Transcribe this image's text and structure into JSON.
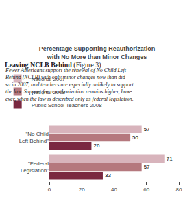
{
  "chart_data": {
    "type": "bar",
    "orientation": "horizontal",
    "title": "Percentage Supporting Reauthorization\nwith No More than Minor Changes",
    "annotations": [
      "Leaving NCLB Behind",
      "(Figure 3)",
      "Fewer Americans support the renewal of No Child Left\nBehind (NCLB) with only minor changes now than did\nso in 2007, and teachers are especially unlikely to support\nthe law. Support for reauthorization remains higher, how-\never, when the law is described only as federal legislation."
    ],
    "categories": [
      "\"No Child\nLeft Behind\"",
      "\"Federal\nLegislation\""
    ],
    "series": [
      {
        "name": "National 2007",
        "color": "#d8b4bc",
        "values": [
          57,
          71
        ]
      },
      {
        "name": "National 2008",
        "color": "#b5787e",
        "values": [
          50,
          57
        ]
      },
      {
        "name": "Public School Teachers 2008",
        "color": "#7a2840",
        "values": [
          26,
          33
        ]
      }
    ],
    "xlim": [
      0,
      80
    ],
    "xticks": [
      0,
      20,
      40,
      60,
      80
    ],
    "grid": false,
    "legend": "top",
    "data_labels": true
  }
}
